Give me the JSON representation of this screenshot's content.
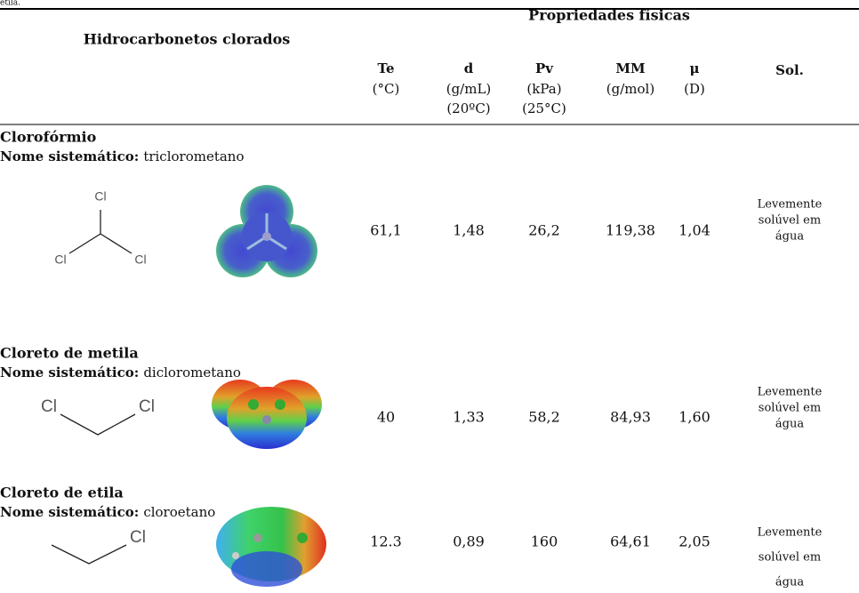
{
  "caption_fragment": "etila.",
  "header": {
    "group": "Hidrocarbonetos clorados",
    "properties": "Propriedades físicas",
    "columns": [
      {
        "symbol": "Te",
        "units": [
          "(°C)"
        ]
      },
      {
        "symbol": "d",
        "units": [
          "(g/mL)",
          "(20ºC)"
        ]
      },
      {
        "symbol": "Pv",
        "units": [
          "(kPa)",
          "(25°C)"
        ]
      },
      {
        "symbol": "MM",
        "units": [
          "(g/mol)"
        ]
      },
      {
        "symbol": "μ",
        "units": [
          "(D)"
        ]
      },
      {
        "symbol": "Sol.",
        "units": []
      }
    ]
  },
  "rows": [
    {
      "name": "Clorofórmio",
      "systematic_label": "Nome sistemático:",
      "systematic_name": "triclorometano",
      "atom_labels": [
        "Cl",
        "Cl",
        "Cl"
      ],
      "values": [
        "61,1",
        "1,48",
        "26,2",
        "119,38",
        "1,04"
      ],
      "solubility": [
        "Levemente",
        "solúvel em",
        "água"
      ]
    },
    {
      "name": "Cloreto de metila",
      "systematic_label": "Nome sistemático:",
      "systematic_name": "diclorometano",
      "atom_labels": [
        "Cl",
        "Cl"
      ],
      "values": [
        "40",
        "1,33",
        "58,2",
        "84,93",
        "1,60"
      ],
      "solubility": [
        "Levemente",
        "solúvel em",
        "água"
      ]
    },
    {
      "name": "Cloreto de etila",
      "systematic_label": "Nome sistemático:",
      "systematic_name": "cloroetano",
      "atom_labels": [
        "Cl"
      ],
      "values": [
        "12.3",
        "0,89",
        "160",
        "64,61",
        "2,05"
      ],
      "solubility": [
        "Levemente",
        "solúvel em",
        "água"
      ]
    }
  ]
}
